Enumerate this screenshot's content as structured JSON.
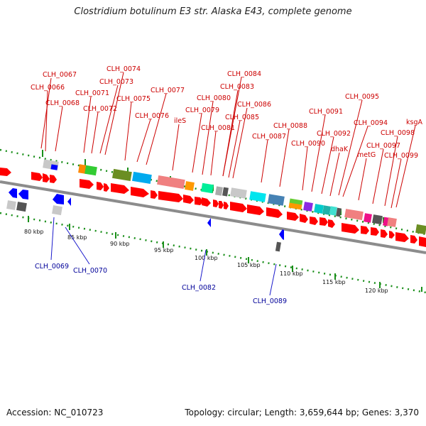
{
  "title": "Clostridium botulinum E3 str. Alaska E43, complete genome",
  "footer": {
    "accession": "Accession: NC_010723",
    "topology": "Topology: circular; Length: 3,659,644 bp; Genes: 3,370"
  },
  "colors": {
    "forward_arrow": "#ff0000",
    "reverse_arrow": "#0000ff",
    "forward_label": "#cc0000",
    "reverse_label": "#000099",
    "backbone": "#909090",
    "ticks": "#1a8f1a"
  },
  "scale_labels": [
    "80 kbp",
    "85 kbp",
    "90 kbp",
    "95 kbp",
    "100 kbp",
    "105 kbp",
    "110 kbp",
    "115 kbp",
    "120 kbp"
  ],
  "top_labels": [
    "CLH_0067",
    "CLH_0066",
    "CLH_0068",
    "CLH_0074",
    "CLH_0073",
    "CLH_0071",
    "CLH_0072",
    "CLH_0075",
    "CLH_0077",
    "CLH_0076",
    "ileS",
    "CLH_0084",
    "CLH_0083",
    "CLH_0080",
    "CLH_0079",
    "CLH_0086",
    "CLH_0085",
    "CLH_0081",
    "CLH_0087",
    "CLH_0088",
    "CLH_0095",
    "CLH_0091",
    "CLH_0094",
    "ksgA",
    "CLH_0092",
    "CLH_0098",
    "CLH_0090",
    "dhaK",
    "CLH_0097",
    "metG",
    "CLH_0099"
  ],
  "bottom_labels": [
    "CLH_0069",
    "CLH_0070",
    "CLH_0082",
    "CLH_0089"
  ]
}
